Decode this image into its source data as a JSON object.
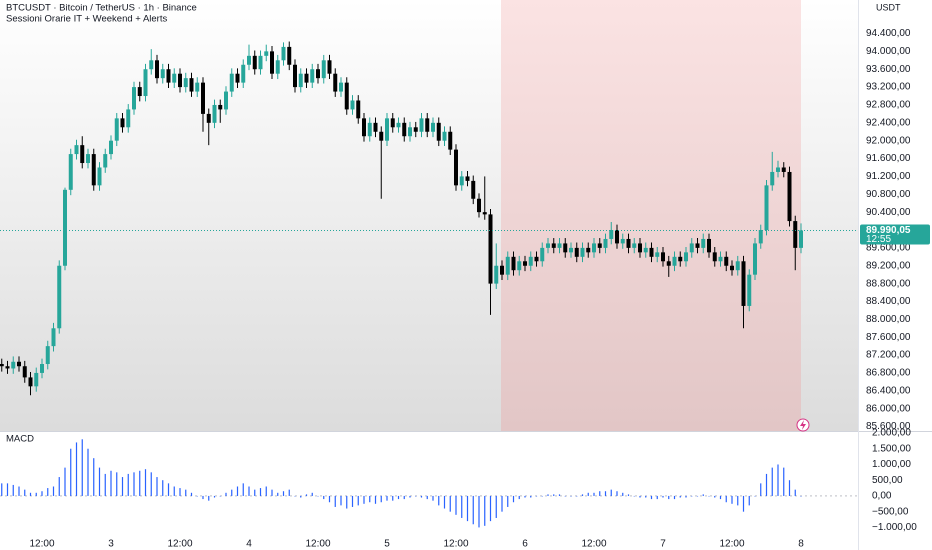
{
  "chart_data": [
    {
      "type": "candlestick",
      "title": "BTCUSDT · Bitcoin / TetherUS · 1h · Binance",
      "subtitle": "Sessioni Orarie IT + Weekend + Alerts",
      "currency_label": "USDT",
      "last_price_label": "89.990,05",
      "countdown": "12:55",
      "up_color": "#26a69a",
      "down_color": "#000000",
      "grid": false,
      "ylim": [
        85500,
        95150
      ],
      "yticks": [
        {
          "value": 85600,
          "label": "85.600,00"
        },
        {
          "value": 86000,
          "label": "86.000,00"
        },
        {
          "value": 86400,
          "label": "86.400,00"
        },
        {
          "value": 86800,
          "label": "86.800,00"
        },
        {
          "value": 87200,
          "label": "87.200,00"
        },
        {
          "value": 87600,
          "label": "87.600,00"
        },
        {
          "value": 88000,
          "label": "88.000,00"
        },
        {
          "value": 88400,
          "label": "88.400,00"
        },
        {
          "value": 88800,
          "label": "88.800,00"
        },
        {
          "value": 89200,
          "label": "89.200,00"
        },
        {
          "value": 89600,
          "label": "89.600,00"
        },
        {
          "value": 90400,
          "label": "90.400,00"
        },
        {
          "value": 90800,
          "label": "90.800,00"
        },
        {
          "value": 91200,
          "label": "91.200,00"
        },
        {
          "value": 91600,
          "label": "91.600,00"
        },
        {
          "value": 92000,
          "label": "92.000,00"
        },
        {
          "value": 92400,
          "label": "92.400,00"
        },
        {
          "value": 92800,
          "label": "92.800,00"
        },
        {
          "value": 93200,
          "label": "93.200,00"
        },
        {
          "value": 93600,
          "label": "93.600,00"
        },
        {
          "value": 94000,
          "label": "94.000,00"
        },
        {
          "value": 94400,
          "label": "94.400,00"
        }
      ],
      "categories": [
        null,
        null,
        null,
        null,
        null,
        null,
        null,
        "12:00",
        null,
        null,
        null,
        null,
        null,
        null,
        null,
        null,
        null,
        null,
        null,
        "3",
        null,
        null,
        null,
        null,
        null,
        null,
        null,
        null,
        null,
        null,
        null,
        "12:00",
        null,
        null,
        null,
        null,
        null,
        null,
        null,
        null,
        null,
        null,
        null,
        "4",
        null,
        null,
        null,
        null,
        null,
        null,
        null,
        null,
        null,
        null,
        null,
        "12:00",
        null,
        null,
        null,
        null,
        null,
        null,
        null,
        null,
        null,
        null,
        null,
        "5",
        null,
        null,
        null,
        null,
        null,
        null,
        null,
        null,
        null,
        null,
        null,
        "12:00",
        null,
        null,
        null,
        null,
        null,
        null,
        null,
        null,
        null,
        null,
        null,
        "6",
        null,
        null,
        null,
        null,
        null,
        null,
        null,
        null,
        null,
        null,
        null,
        "12:00",
        null,
        null,
        null,
        null,
        null,
        null,
        null,
        null,
        null,
        null,
        null,
        "7",
        null,
        null,
        null,
        null,
        null,
        null,
        null,
        null,
        null,
        null,
        null,
        "12:00",
        null,
        null,
        null,
        null,
        null,
        null,
        null,
        null,
        null,
        null,
        null,
        "8"
      ],
      "ohlc": [
        [
          87000,
          87120,
          86830,
          86950
        ],
        [
          86950,
          87070,
          86780,
          86900
        ],
        [
          86900,
          87170,
          86780,
          87050
        ],
        [
          87050,
          87170,
          86830,
          86950
        ],
        [
          86950,
          87070,
          86580,
          86700
        ],
        [
          86700,
          86820,
          86300,
          86500
        ],
        [
          86500,
          86920,
          86380,
          86800
        ],
        [
          86800,
          87120,
          86680,
          87000
        ],
        [
          87000,
          87520,
          86880,
          87400
        ],
        [
          87400,
          87920,
          87280,
          87800
        ],
        [
          87800,
          89320,
          87680,
          89200
        ],
        [
          89200,
          90950,
          89100,
          90900
        ],
        [
          90900,
          91820,
          90780,
          91700
        ],
        [
          91700,
          92020,
          91580,
          91900
        ],
        [
          91900,
          92100,
          91380,
          91500
        ],
        [
          91500,
          91820,
          91380,
          91700
        ],
        [
          91700,
          91820,
          90880,
          91000
        ],
        [
          91000,
          91520,
          90880,
          91400
        ],
        [
          91400,
          91820,
          91280,
          91700
        ],
        [
          91700,
          92120,
          91580,
          92000
        ],
        [
          92000,
          92620,
          91880,
          92500
        ],
        [
          92500,
          92620,
          92180,
          92300
        ],
        [
          92300,
          92820,
          92180,
          92700
        ],
        [
          92700,
          93320,
          92580,
          93200
        ],
        [
          93200,
          93320,
          92880,
          93000
        ],
        [
          93000,
          93720,
          92880,
          93600
        ],
        [
          93600,
          94050,
          93480,
          93800
        ],
        [
          93800,
          93920,
          93280,
          93400
        ],
        [
          93400,
          93720,
          93280,
          93600
        ],
        [
          93600,
          93720,
          93180,
          93300
        ],
        [
          93300,
          93620,
          93180,
          93500
        ],
        [
          93500,
          93620,
          93080,
          93200
        ],
        [
          93200,
          93520,
          93080,
          93400
        ],
        [
          93400,
          93520,
          92980,
          93100
        ],
        [
          93100,
          93420,
          92980,
          93300
        ],
        [
          93300,
          93420,
          92200,
          92600
        ],
        [
          92600,
          92720,
          91900,
          92400
        ],
        [
          92400,
          92920,
          92280,
          92800
        ],
        [
          92800,
          92920,
          92400,
          92700
        ],
        [
          92700,
          93220,
          92580,
          93100
        ],
        [
          93100,
          93620,
          92980,
          93500
        ],
        [
          93500,
          93620,
          93180,
          93300
        ],
        [
          93300,
          93820,
          93180,
          93700
        ],
        [
          93700,
          94150,
          93580,
          93900
        ],
        [
          93900,
          94020,
          93480,
          93600
        ],
        [
          93600,
          94020,
          93480,
          93900
        ],
        [
          93900,
          94150,
          93780,
          94000
        ],
        [
          94000,
          94120,
          93380,
          93500
        ],
        [
          93500,
          93920,
          93380,
          93800
        ],
        [
          93800,
          94200,
          93680,
          94100
        ],
        [
          94100,
          94220,
          93580,
          93700
        ],
        [
          93700,
          93820,
          93080,
          93200
        ],
        [
          93200,
          93620,
          93080,
          93500
        ],
        [
          93500,
          93620,
          93180,
          93300
        ],
        [
          93300,
          93720,
          93180,
          93600
        ],
        [
          93600,
          93720,
          93280,
          93400
        ],
        [
          93400,
          93920,
          93280,
          93800
        ],
        [
          93800,
          93920,
          93380,
          93500
        ],
        [
          93500,
          93620,
          92980,
          93100
        ],
        [
          93100,
          93420,
          92980,
          93300
        ],
        [
          93300,
          93420,
          92580,
          92700
        ],
        [
          92700,
          93020,
          92580,
          92900
        ],
        [
          92900,
          93020,
          92380,
          92500
        ],
        [
          92500,
          92620,
          91980,
          92100
        ],
        [
          92100,
          92520,
          91980,
          92400
        ],
        [
          92400,
          92520,
          92080,
          92200
        ],
        [
          92200,
          92320,
          90700,
          92000
        ],
        [
          92000,
          92620,
          91880,
          92500
        ],
        [
          92500,
          92620,
          92180,
          92300
        ],
        [
          92300,
          92520,
          92180,
          92400
        ],
        [
          92400,
          92520,
          91980,
          92100
        ],
        [
          92100,
          92420,
          91980,
          92300
        ],
        [
          92300,
          92420,
          92080,
          92200
        ],
        [
          92200,
          92620,
          92080,
          92500
        ],
        [
          92500,
          92620,
          92080,
          92200
        ],
        [
          92200,
          92520,
          92080,
          92400
        ],
        [
          92400,
          92520,
          91880,
          92000
        ],
        [
          92000,
          92320,
          91880,
          92200
        ],
        [
          92200,
          92320,
          91680,
          91800
        ],
        [
          91800,
          91920,
          90880,
          91000
        ],
        [
          91000,
          91320,
          90880,
          91200
        ],
        [
          91200,
          91320,
          90980,
          91100
        ],
        [
          91100,
          91220,
          90580,
          90700
        ],
        [
          90700,
          90820,
          90280,
          90400
        ],
        [
          90400,
          91200,
          90230,
          90350
        ],
        [
          90350,
          90470,
          88100,
          88800
        ],
        [
          88800,
          89700,
          88680,
          89200
        ],
        [
          89200,
          89320,
          88880,
          89000
        ],
        [
          89000,
          89520,
          88880,
          89400
        ],
        [
          89400,
          89520,
          88980,
          89100
        ],
        [
          89100,
          89420,
          88980,
          89300
        ],
        [
          89300,
          89420,
          89080,
          89200
        ],
        [
          89200,
          89520,
          89080,
          89400
        ],
        [
          89400,
          89520,
          89180,
          89300
        ],
        [
          89300,
          89720,
          89180,
          89600
        ],
        [
          89600,
          89820,
          89480,
          89700
        ],
        [
          89700,
          89820,
          89480,
          89600
        ],
        [
          89600,
          89820,
          89480,
          89700
        ],
        [
          89700,
          89820,
          89380,
          89500
        ],
        [
          89500,
          89720,
          89380,
          89600
        ],
        [
          89600,
          89720,
          89280,
          89400
        ],
        [
          89400,
          89720,
          89280,
          89600
        ],
        [
          89600,
          89720,
          89380,
          89500
        ],
        [
          89500,
          89820,
          89380,
          89700
        ],
        [
          89700,
          89820,
          89480,
          89600
        ],
        [
          89600,
          89920,
          89480,
          89800
        ],
        [
          89800,
          90180,
          89680,
          90000
        ],
        [
          90000,
          90120,
          89580,
          89700
        ],
        [
          89700,
          89920,
          89580,
          89800
        ],
        [
          89800,
          89920,
          89480,
          89600
        ],
        [
          89600,
          89820,
          89480,
          89700
        ],
        [
          89700,
          89820,
          89380,
          89500
        ],
        [
          89500,
          89720,
          89380,
          89600
        ],
        [
          89600,
          89720,
          89280,
          89400
        ],
        [
          89400,
          89620,
          89280,
          89500
        ],
        [
          89500,
          89620,
          89180,
          89300
        ],
        [
          89300,
          89420,
          88950,
          89200
        ],
        [
          89200,
          89520,
          89080,
          89400
        ],
        [
          89400,
          89520,
          89180,
          89300
        ],
        [
          89300,
          89620,
          89180,
          89500
        ],
        [
          89500,
          89820,
          89380,
          89700
        ],
        [
          89700,
          89820,
          89480,
          89600
        ],
        [
          89600,
          89920,
          89480,
          89800
        ],
        [
          89800,
          89920,
          89380,
          89500
        ],
        [
          89500,
          89620,
          89180,
          89300
        ],
        [
          89300,
          89520,
          89180,
          89400
        ],
        [
          89400,
          89520,
          89080,
          89200
        ],
        [
          89200,
          89320,
          88980,
          89100
        ],
        [
          89100,
          89420,
          88980,
          89300
        ],
        [
          89300,
          89420,
          87800,
          88300
        ],
        [
          88300,
          89120,
          88180,
          89000
        ],
        [
          89000,
          89820,
          88880,
          89700
        ],
        [
          89700,
          90120,
          89580,
          90000
        ],
        [
          90000,
          91120,
          89880,
          91000
        ],
        [
          91000,
          91750,
          90880,
          91300
        ],
        [
          91300,
          91550,
          91180,
          91400
        ],
        [
          91400,
          91520,
          91180,
          91300
        ],
        [
          91300,
          91420,
          90080,
          90200
        ],
        [
          90200,
          90320,
          89100,
          89600
        ],
        [
          89600,
          90150,
          89480,
          89990.05
        ]
      ]
    },
    {
      "type": "bar",
      "title": "MACD",
      "color": "#2962ff",
      "ylim": [
        -1400,
        2000
      ],
      "yticks": [
        {
          "value": -1000,
          "label": "−1.000,00"
        },
        {
          "value": -500,
          "label": "−500,00"
        },
        {
          "value": 0,
          "label": "0,00"
        },
        {
          "value": 500,
          "label": "500,00"
        },
        {
          "value": 1000,
          "label": "1.000,00"
        },
        {
          "value": 1500,
          "label": "1.500,00"
        },
        {
          "value": 2000,
          "label": "2.000,00"
        }
      ],
      "values": [
        400,
        400,
        350,
        300,
        200,
        100,
        100,
        150,
        250,
        300,
        600,
        900,
        1500,
        1700,
        1800,
        1500,
        1200,
        900,
        700,
        800,
        750,
        600,
        700,
        750,
        800,
        850,
        750,
        600,
        500,
        400,
        300,
        250,
        200,
        100,
        0,
        -100,
        -150,
        -50,
        0,
        100,
        200,
        300,
        400,
        300,
        200,
        250,
        300,
        200,
        100,
        150,
        200,
        0,
        -50,
        50,
        100,
        0,
        -100,
        -200,
        -350,
        -300,
        -400,
        -350,
        -300,
        -250,
        -200,
        -250,
        -200,
        -150,
        -150,
        -100,
        -100,
        -50,
        0,
        -50,
        -100,
        -150,
        -300,
        -400,
        -500,
        -600,
        -700,
        -800,
        -900,
        -1000,
        -950,
        -800,
        -700,
        -500,
        -350,
        -200,
        -100,
        -50,
        -50,
        0,
        0,
        50,
        50,
        50,
        0,
        0,
        0,
        50,
        100,
        100,
        150,
        150,
        200,
        150,
        100,
        50,
        0,
        -50,
        -50,
        -100,
        -100,
        -50,
        -100,
        -100,
        -50,
        -50,
        0,
        0,
        50,
        0,
        -50,
        -100,
        -200,
        -250,
        -300,
        -500,
        -300,
        0,
        400,
        700,
        900,
        1000,
        900,
        500,
        200,
        0
      ]
    }
  ]
}
